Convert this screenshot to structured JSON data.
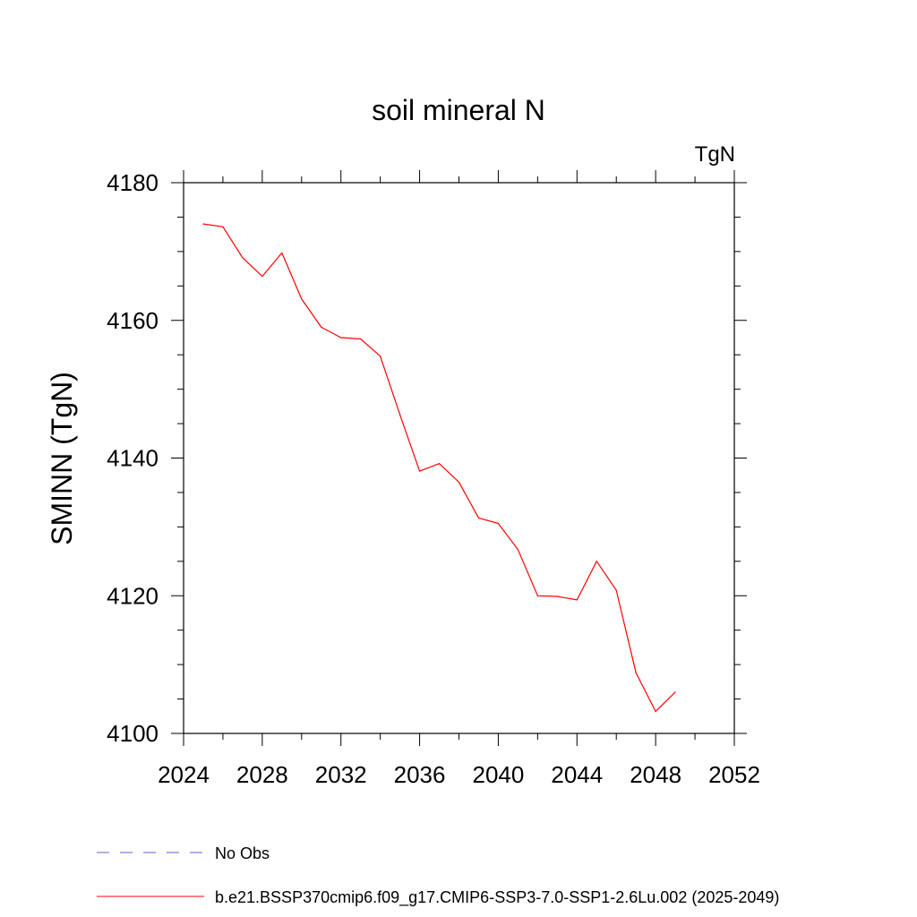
{
  "chart_data": {
    "type": "line",
    "title": "soil mineral N",
    "units_label": "TgN",
    "xlabel": "",
    "ylabel": "SMINN  (TgN)",
    "xlim": [
      2024,
      2052
    ],
    "ylim": [
      4100,
      4180
    ],
    "x_ticks": [
      2024,
      2028,
      2032,
      2036,
      2040,
      2044,
      2048,
      2052
    ],
    "x_minor_step": 2,
    "y_ticks": [
      4100,
      4120,
      4140,
      4160,
      4180
    ],
    "y_minor_step": 5,
    "grid": false,
    "legend_position": "bottom",
    "legend": [
      {
        "label": "No Obs",
        "color": "#6a5acd",
        "style": "dashed"
      },
      {
        "label": "b.e21.BSSP370cmip6.f09_g17.CMIP6-SSP3-7.0-SSP1-2.6Lu.002 (2025-2049)",
        "color": "#ff0000",
        "style": "solid"
      }
    ],
    "series": [
      {
        "name": "b.e21.BSSP370cmip6.f09_g17.CMIP6-SSP3-7.0-SSP1-2.6Lu.002 (2025-2049)",
        "color": "#ff0000",
        "x": [
          2025,
          2026,
          2027,
          2028,
          2029,
          2030,
          2031,
          2032,
          2033,
          2034,
          2035,
          2036,
          2037,
          2038,
          2039,
          2040,
          2041,
          2042,
          2043,
          2044,
          2045,
          2046,
          2047,
          2048,
          2049
        ],
        "y": [
          4174.0,
          4173.6,
          4169.1,
          4166.4,
          4169.8,
          4163.1,
          4159.0,
          4157.5,
          4157.3,
          4154.8,
          4146.3,
          4138.1,
          4139.2,
          4136.5,
          4131.3,
          4130.5,
          4126.7,
          4120.0,
          4119.9,
          4119.4,
          4125.0,
          4120.8,
          4108.8,
          4103.2,
          4106.0
        ]
      }
    ]
  }
}
